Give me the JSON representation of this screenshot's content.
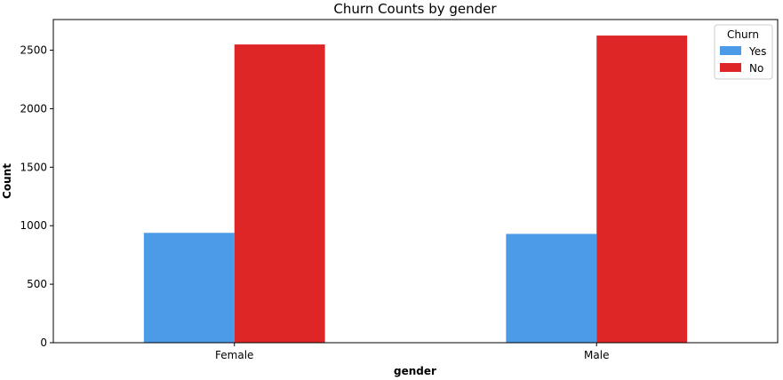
{
  "chart_data": {
    "type": "bar",
    "title": "Churn Counts by gender",
    "xlabel": "gender",
    "ylabel": "Count",
    "categories": [
      "Female",
      "Male"
    ],
    "series": [
      {
        "name": "Yes",
        "values": [
          939,
          930
        ],
        "color": "#4c9be8"
      },
      {
        "name": "No",
        "values": [
          2549,
          2625
        ],
        "color": "#df2626"
      }
    ],
    "ylim": [
      0,
      2762
    ],
    "yticks": [
      0,
      500,
      1000,
      1500,
      2000,
      2500
    ],
    "legend": {
      "title": "Churn",
      "placement": "top-right"
    },
    "grid": false
  }
}
